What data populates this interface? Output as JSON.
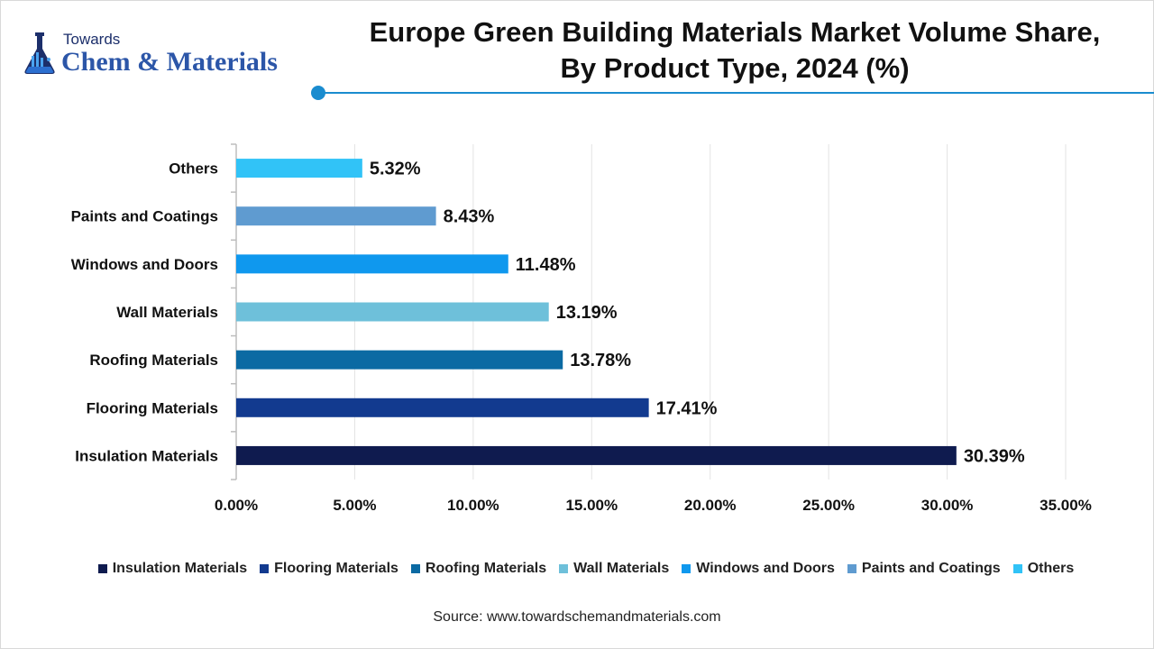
{
  "logo": {
    "top_text": "Towards",
    "main_text": "Chem & Materials"
  },
  "title_line1": "Europe Green Building Materials Market Volume Share,",
  "title_line2": "By Product Type, 2024 (%)",
  "source": "Source: www.towardschemandmaterials.com",
  "accent_color": "#1a8ccf",
  "chart_data": {
    "type": "bar",
    "orientation": "horizontal",
    "title": "Europe Green Building Materials Market Volume Share, By Product Type, 2024 (%)",
    "xlabel": "",
    "ylabel": "",
    "xlim": [
      0,
      35
    ],
    "x_ticks": [
      0,
      5,
      10,
      15,
      20,
      25,
      30,
      35
    ],
    "x_tick_labels": [
      "0.00%",
      "5.00%",
      "10.00%",
      "15.00%",
      "20.00%",
      "25.00%",
      "30.00%",
      "35.00%"
    ],
    "grid": "vertical",
    "legend_position": "bottom",
    "categories": [
      "Insulation Materials",
      "Flooring Materials",
      "Roofing Materials",
      "Wall Materials",
      "Windows and Doors",
      "Paints and Coatings",
      "Others"
    ],
    "values": [
      30.39,
      17.41,
      13.78,
      13.19,
      11.48,
      8.43,
      5.32
    ],
    "value_labels": [
      "30.39%",
      "17.41%",
      "13.78%",
      "13.19%",
      "11.48%",
      "8.43%",
      "5.32%"
    ],
    "colors": [
      "#0f1b4f",
      "#123a8f",
      "#0b6aa3",
      "#6ec0da",
      "#0f98ee",
      "#5f9bd0",
      "#31c3f7"
    ]
  }
}
